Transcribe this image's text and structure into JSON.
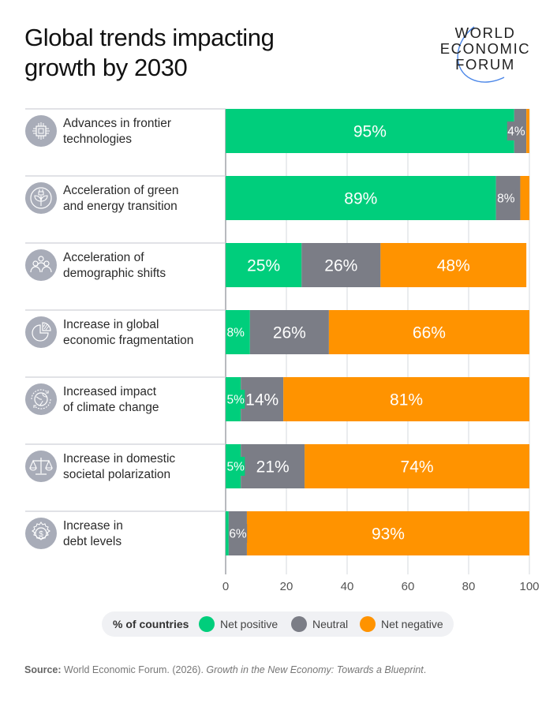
{
  "header": {
    "title_line1": "Global trends impacting",
    "title_line2": "growth by 2030",
    "logo": [
      "WORLD",
      "ECONOMIC",
      "FORUM"
    ]
  },
  "colors": {
    "net_positive": "#00CE7C",
    "neutral": "#7B7D86",
    "net_negative": "#FF9300",
    "icon_bg": "#A8ACB8"
  },
  "legend": {
    "title": "% of countries",
    "items": [
      {
        "label": "Net positive",
        "color": "#00CE7C"
      },
      {
        "label": "Neutral",
        "color": "#7B7D86"
      },
      {
        "label": "Net negative",
        "color": "#FF9300"
      }
    ]
  },
  "rows": [
    {
      "line1": "Advances in frontier",
      "line2": "technologies",
      "icon": "chip-icon"
    },
    {
      "line1": "Acceleration of green",
      "line2": "and energy transition",
      "icon": "plant-plug-icon"
    },
    {
      "line1": "Acceleration of",
      "line2": "demographic shifts",
      "icon": "people-icon"
    },
    {
      "line1": "Increase in global",
      "line2": "economic fragmentation",
      "icon": "pie-chart-icon"
    },
    {
      "line1": "Increased impact",
      "line2": "of climate change",
      "icon": "globe-cycle-icon"
    },
    {
      "line1": "Increase in domestic",
      "line2": "societal polarization",
      "icon": "scales-icon"
    },
    {
      "line1": "Increase in",
      "line2": "debt levels",
      "icon": "dollar-gear-icon"
    }
  ],
  "chart_data": {
    "type": "bar",
    "orientation": "horizontal",
    "stacked": true,
    "title": "Global trends impacting growth by 2030",
    "xlabel": "% of countries",
    "ylabel": "",
    "xlim": [
      0,
      100
    ],
    "x_ticks": [
      "0",
      "20",
      "40",
      "60",
      "80",
      "100"
    ],
    "grid": true,
    "legend_position": "bottom",
    "categories": [
      "Advances in frontier technologies",
      "Acceleration of green and energy transition",
      "Acceleration of demographic shifts",
      "Increase in global economic fragmentation",
      "Increased impact of climate change",
      "Increase in domestic societal polarization",
      "Increase in debt levels"
    ],
    "series": [
      {
        "name": "Net positive",
        "color": "#00CE7C",
        "values": [
          95,
          89,
          25,
          8,
          5,
          5,
          1
        ],
        "labels": [
          "95%",
          "89%",
          "25%",
          "8%",
          "5%",
          "5%",
          ""
        ]
      },
      {
        "name": "Neutral",
        "color": "#7B7D86",
        "values": [
          4,
          8,
          26,
          26,
          14,
          21,
          6
        ],
        "labels": [
          "4%",
          "8%",
          "26%",
          "26%",
          "14%",
          "21%",
          "6%"
        ]
      },
      {
        "name": "Net negative",
        "color": "#FF9300",
        "values": [
          1,
          3,
          48,
          66,
          81,
          74,
          93
        ],
        "labels": [
          "",
          "",
          "48%",
          "66%",
          "81%",
          "74%",
          "93%"
        ]
      }
    ]
  },
  "source": {
    "label": "Source:",
    "text": " World Economic Forum. (2026). ",
    "title": "Growth in the New Economy: Towards a Blueprint",
    "end": "."
  }
}
